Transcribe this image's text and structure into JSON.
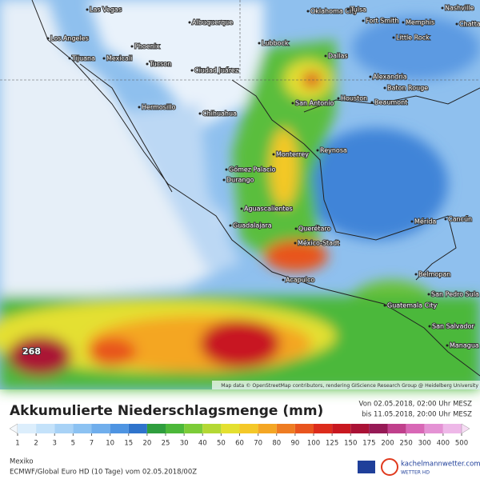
{
  "map": {
    "labels": [
      "Las Vegas",
      "Oklahoma City",
      "Tulsa",
      "Nashville",
      "Fort Smith",
      "Memphis",
      "Chatta",
      "Los Angeles",
      "Albuquerque",
      "Little Rock",
      "Phoenix",
      "Lubbock",
      "Dallas",
      "Tijuana",
      "Mexicali",
      "Tucson",
      "Ciudad Juárez",
      "Alexandria",
      "Baton Rouge",
      "Hermosillo",
      "San Antonio",
      "Houston",
      "Beaumont",
      "Chihuahua",
      "Monterrey",
      "Reynosa",
      "Gómez Palacio",
      "Durango",
      "Aguascalientes",
      "Guadalajara",
      "Querétaro",
      "México-Stadt",
      "Mérida",
      "Cancún",
      "Acapulco",
      "Belmopan",
      "San Pedro Sula",
      "Guatemala City",
      "San Salvador",
      "Managua"
    ],
    "max_value": "268",
    "attribution": "Map data © OpenStreetMap contributors, rendering GIScience Research Group @ Heidelberg University"
  },
  "footer": {
    "title": "Akkumulierte Niederschlagsmenge (mm)",
    "from": "Von 02.05.2018, 02:00 Uhr MESZ",
    "to": "bis 11.05.2018, 20:00 Uhr MESZ",
    "scale_ticks": [
      1,
      2,
      3,
      5,
      7,
      10,
      15,
      20,
      25,
      30,
      40,
      50,
      60,
      70,
      80,
      90,
      100,
      125,
      150,
      175,
      200,
      250,
      300,
      400,
      500
    ],
    "scale_colors": [
      "#f4f8fc",
      "#dceefc",
      "#c4e2fa",
      "#a8d2f6",
      "#8cc2f2",
      "#70aeec",
      "#4e94e2",
      "#2f74cc",
      "#2f9e3e",
      "#4cb83a",
      "#7ccc38",
      "#b4d834",
      "#e4e030",
      "#f4c828",
      "#f4a624",
      "#ee7c22",
      "#e8541e",
      "#dc2c1c",
      "#c81820",
      "#aa1236",
      "#961a56",
      "#c0408c",
      "#d868b6",
      "#e492d4",
      "#eeb8e8",
      "#f6dcf4"
    ],
    "region": "Mexiko",
    "model": "ECMWF/Global Euro HD (10 Tage) vom 02.05.2018/00Z",
    "brand": "kachelmannwetter.com",
    "brand_sub": "WETTER HD"
  }
}
